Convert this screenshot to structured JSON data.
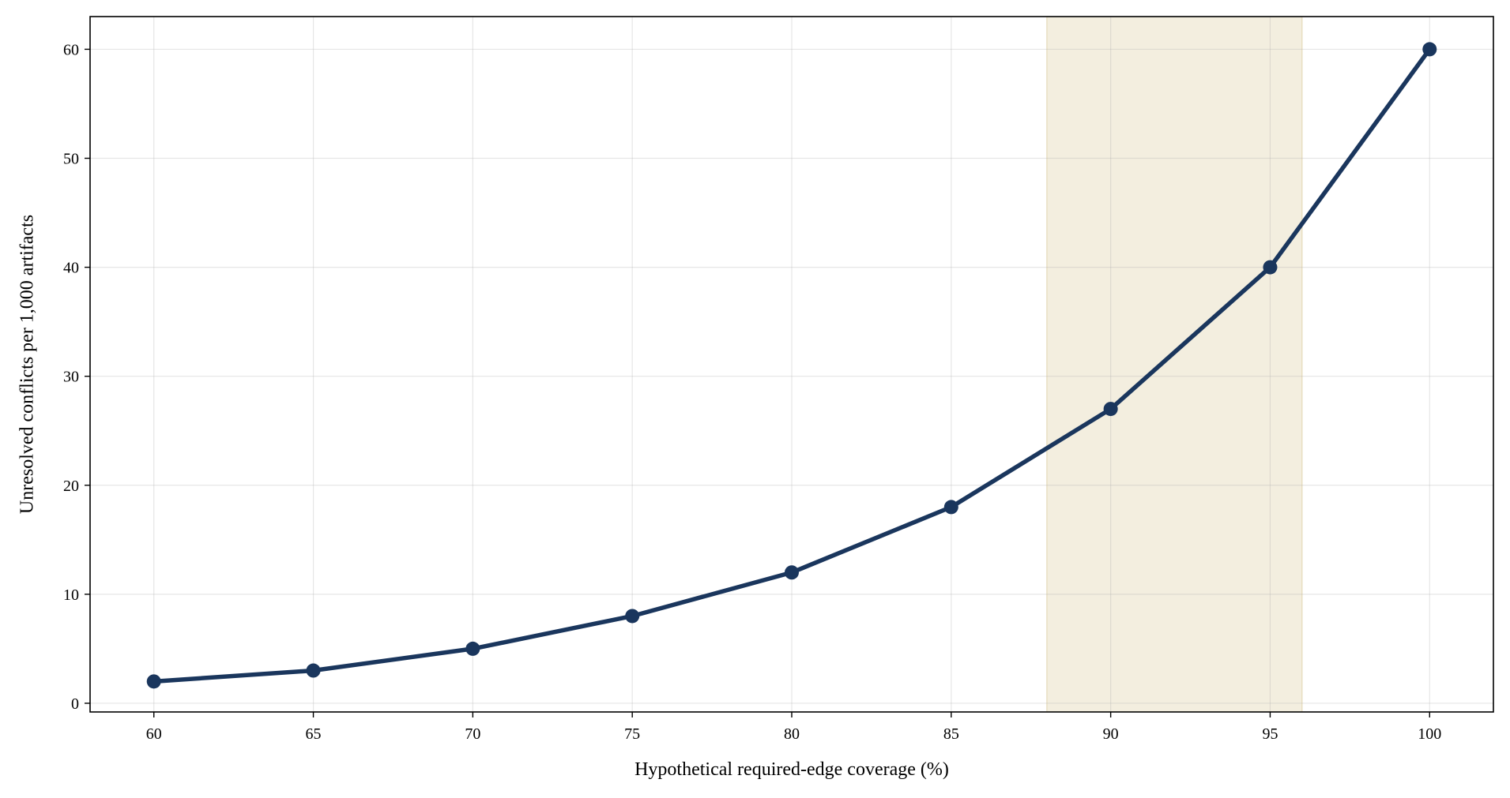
{
  "chart_data": {
    "type": "line",
    "title": "",
    "xlabel": "Hypothetical required-edge coverage (%)",
    "ylabel": "Unresolved conflicts per 1,000 artifacts",
    "x": [
      60,
      65,
      70,
      75,
      80,
      85,
      90,
      95,
      100
    ],
    "series": [
      {
        "values": [
          2,
          3,
          5,
          8,
          12,
          18,
          27,
          40,
          60
        ],
        "color": "#1a365d"
      }
    ],
    "xlim": [
      58,
      102
    ],
    "ylim": [
      -0.8,
      63
    ],
    "xticks": [
      60,
      65,
      70,
      75,
      80,
      85,
      90,
      95,
      100
    ],
    "yticks": [
      0,
      10,
      20,
      30,
      40,
      50,
      60
    ],
    "grid": true,
    "shaded_region": {
      "x_start": 88,
      "x_end": 96,
      "color": "#f3eedf"
    }
  }
}
